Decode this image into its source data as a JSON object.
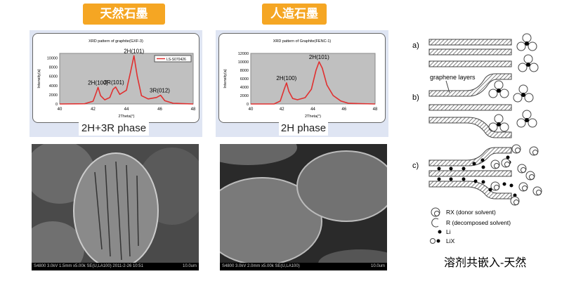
{
  "labels": {
    "natural": "天然石墨",
    "artificial": "人造石墨"
  },
  "chart_data": [
    {
      "type": "line",
      "title": "XRD pattern of graphite(GXF-3)",
      "xlabel": "2Theta(°)",
      "ylabel": "Intensity(a)",
      "xlim": [
        40,
        48
      ],
      "ylim": [
        0,
        11000
      ],
      "xticks": [
        "40",
        "42",
        "44",
        "46",
        "48"
      ],
      "yticks": [
        "0",
        "2000",
        "4000",
        "6000",
        "8000",
        "10000"
      ],
      "legend": "LS-S070426",
      "legend_position": "top-right",
      "color": "#e03030",
      "x": [
        40,
        41.5,
        42,
        42.2,
        42.3,
        42.45,
        42.7,
        43,
        43.2,
        43.35,
        43.6,
        44,
        44.25,
        44.45,
        44.65,
        44.9,
        45.3,
        45.8,
        46.05,
        46.3,
        46.8,
        48
      ],
      "y": [
        0,
        50,
        600,
        2600,
        3600,
        1800,
        900,
        1400,
        3200,
        3700,
        2100,
        3000,
        7000,
        10500,
        6000,
        1800,
        1100,
        1400,
        1900,
        700,
        150,
        0
      ],
      "annotations": [
        "2H(100)",
        "3R(101)",
        "2H(101)",
        "3R(012)"
      ],
      "phase": "2H+3R phase"
    },
    {
      "type": "line",
      "title": "XRD pattern of Graphite(FENC-1)",
      "xlabel": "2Theta(°)",
      "ylabel": "Intensity(a)",
      "xlim": [
        40,
        48
      ],
      "ylim": [
        0,
        12000
      ],
      "xticks": [
        "40",
        "42",
        "44",
        "46",
        "48"
      ],
      "yticks": [
        "0",
        "2000",
        "4000",
        "6000",
        "8000",
        "10000",
        "12000"
      ],
      "color": "#e03030",
      "x": [
        40,
        41.5,
        41.9,
        42.15,
        42.3,
        42.45,
        42.7,
        43,
        43.5,
        43.9,
        44.2,
        44.4,
        44.6,
        44.9,
        45.3,
        45.8,
        46.3,
        48
      ],
      "y": [
        0,
        0,
        700,
        3500,
        5000,
        3000,
        1300,
        1000,
        1500,
        3500,
        8000,
        10000,
        8500,
        4500,
        2000,
        700,
        150,
        0
      ],
      "annotations": [
        "2H(100)",
        "2H(101)"
      ],
      "phase": "2H phase"
    }
  ],
  "sem": [
    {
      "info": "S4800 3.0kV 1.5mm x5.00k SE(U,LA100) 2011-2-26 10:51",
      "scale": "10.0um"
    },
    {
      "info": "S4800 3.0kV 2.0mm x5.00k SE(U,LA100)",
      "scale": "10.0um"
    }
  ],
  "diagram": {
    "a": "a)",
    "b": "b)",
    "c": "c)",
    "layers": "graphene layers",
    "legend": [
      "RX (donor solvent)",
      "R (decomposed solvent)",
      "Li",
      "LiX"
    ],
    "caption": "溶剂共嵌入-天然"
  }
}
